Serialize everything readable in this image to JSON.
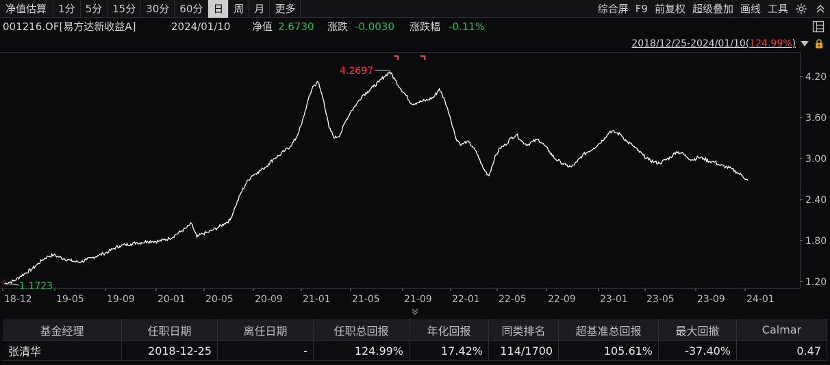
{
  "toolbar": {
    "left_items": [
      "净值估算",
      "1分",
      "5分",
      "15分",
      "30分",
      "60分",
      "日",
      "周",
      "月",
      "更多"
    ],
    "active_item": "日",
    "right_items": [
      "综合屏",
      "F9",
      "前复权",
      "超级叠加",
      "画线",
      "工具"
    ],
    "right_icons": [
      "gear-icon",
      "double-chevron-up-icon"
    ]
  },
  "info": {
    "fund": "001216.OF[易方达新收益A]",
    "date": "2024/01/10",
    "nav_label": "净值",
    "nav_value": "2.6730",
    "change_label": "涨跌",
    "change_value": "-0.0030",
    "pct_label": "涨跌幅",
    "pct_value": "-0.11%"
  },
  "range": {
    "text": "2018/12/25-2024/01/10(",
    "pct": "124.99%",
    "close": ")"
  },
  "chart_data": {
    "type": "line",
    "ylim": [
      1.1,
      4.5
    ],
    "y_ticks": [
      "4.20",
      "3.60",
      "3.00",
      "2.40",
      "1.80",
      "1.20"
    ],
    "x_ticks": [
      "18-12",
      "19-05",
      "19-09",
      "20-01",
      "20-05",
      "20-09",
      "21-01",
      "21-05",
      "21-09",
      "22-01",
      "22-05",
      "22-09",
      "23-01",
      "23-05",
      "23-09",
      "24-01"
    ],
    "max_label": "4.2697",
    "min_label": "1.1723",
    "series": [
      {
        "values": [
          [
            0,
            1.17
          ],
          [
            2,
            1.19
          ],
          [
            4,
            1.22
          ],
          [
            6,
            1.28
          ],
          [
            8,
            1.33
          ],
          [
            10,
            1.38
          ],
          [
            12,
            1.45
          ],
          [
            14,
            1.52
          ],
          [
            16,
            1.57
          ],
          [
            18,
            1.59
          ],
          [
            20,
            1.56
          ],
          [
            22,
            1.53
          ],
          [
            24,
            1.51
          ],
          [
            26,
            1.49
          ],
          [
            28,
            1.49
          ],
          [
            30,
            1.52
          ],
          [
            32,
            1.55
          ],
          [
            34,
            1.58
          ],
          [
            36,
            1.61
          ],
          [
            38,
            1.64
          ],
          [
            40,
            1.69
          ],
          [
            42,
            1.72
          ],
          [
            44,
            1.74
          ],
          [
            46,
            1.75
          ],
          [
            48,
            1.77
          ],
          [
            50,
            1.77
          ],
          [
            52,
            1.79
          ],
          [
            54,
            1.79
          ],
          [
            56,
            1.79
          ],
          [
            58,
            1.81
          ],
          [
            60,
            1.83
          ],
          [
            62,
            1.88
          ],
          [
            64,
            1.93
          ],
          [
            66,
            1.98
          ],
          [
            68,
            2.05
          ],
          [
            70,
            1.85
          ],
          [
            72,
            1.9
          ],
          [
            74,
            1.92
          ],
          [
            76,
            1.96
          ],
          [
            78,
            2.0
          ],
          [
            80,
            2.05
          ],
          [
            82,
            2.1
          ],
          [
            84,
            2.3
          ],
          [
            86,
            2.5
          ],
          [
            88,
            2.65
          ],
          [
            90,
            2.75
          ],
          [
            92,
            2.8
          ],
          [
            94,
            2.85
          ],
          [
            96,
            2.92
          ],
          [
            98,
            3.0
          ],
          [
            100,
            3.05
          ],
          [
            102,
            3.12
          ],
          [
            104,
            3.18
          ],
          [
            106,
            3.3
          ],
          [
            108,
            3.5
          ],
          [
            110,
            3.8
          ],
          [
            112,
            4.05
          ],
          [
            114,
            4.12
          ],
          [
            116,
            3.85
          ],
          [
            118,
            3.45
          ],
          [
            120,
            3.3
          ],
          [
            122,
            3.35
          ],
          [
            124,
            3.55
          ],
          [
            126,
            3.7
          ],
          [
            128,
            3.8
          ],
          [
            130,
            3.92
          ],
          [
            132,
            3.98
          ],
          [
            134,
            4.05
          ],
          [
            136,
            4.12
          ],
          [
            138,
            4.2
          ],
          [
            140,
            4.27
          ],
          [
            142,
            4.15
          ],
          [
            144,
            4.02
          ],
          [
            146,
            3.92
          ],
          [
            148,
            3.8
          ],
          [
            150,
            3.82
          ],
          [
            152,
            3.84
          ],
          [
            154,
            3.86
          ],
          [
            156,
            3.9
          ],
          [
            158,
            4.02
          ],
          [
            160,
            3.85
          ],
          [
            162,
            3.6
          ],
          [
            164,
            3.3
          ],
          [
            166,
            3.2
          ],
          [
            168,
            3.25
          ],
          [
            170,
            3.18
          ],
          [
            172,
            3.05
          ],
          [
            174,
            2.85
          ],
          [
            176,
            2.75
          ],
          [
            178,
            3.0
          ],
          [
            180,
            3.15
          ],
          [
            182,
            3.2
          ],
          [
            184,
            3.3
          ],
          [
            186,
            3.35
          ],
          [
            188,
            3.25
          ],
          [
            190,
            3.2
          ],
          [
            192,
            3.25
          ],
          [
            194,
            3.28
          ],
          [
            196,
            3.2
          ],
          [
            198,
            3.1
          ],
          [
            200,
            3.0
          ],
          [
            202,
            2.95
          ],
          [
            204,
            2.9
          ],
          [
            206,
            2.88
          ],
          [
            208,
            2.95
          ],
          [
            210,
            3.05
          ],
          [
            212,
            3.1
          ],
          [
            214,
            3.15
          ],
          [
            216,
            3.22
          ],
          [
            218,
            3.3
          ],
          [
            220,
            3.4
          ],
          [
            222,
            3.38
          ],
          [
            224,
            3.35
          ],
          [
            226,
            3.25
          ],
          [
            228,
            3.2
          ],
          [
            230,
            3.12
          ],
          [
            232,
            3.05
          ],
          [
            234,
            2.98
          ],
          [
            236,
            2.95
          ],
          [
            238,
            2.93
          ],
          [
            240,
            2.98
          ],
          [
            242,
            3.02
          ],
          [
            244,
            3.1
          ],
          [
            246,
            3.08
          ],
          [
            248,
            3.02
          ],
          [
            250,
            2.98
          ],
          [
            252,
            3.02
          ],
          [
            254,
            3.0
          ],
          [
            256,
            2.96
          ],
          [
            258,
            2.95
          ],
          [
            260,
            2.9
          ],
          [
            262,
            2.88
          ],
          [
            264,
            2.85
          ],
          [
            266,
            2.8
          ],
          [
            268,
            2.75
          ],
          [
            270,
            2.68
          ]
        ]
      }
    ]
  },
  "table": {
    "headers": [
      "基金经理",
      "任职日期",
      "离任日期",
      "任职总回报",
      "年化回报",
      "同类排名",
      "超基准总回报",
      "最大回撤",
      "Calmar"
    ],
    "rows": [
      [
        "张清华",
        "2018-12-25",
        "-",
        "124.99%",
        "17.42%",
        "114/1700",
        "105.61%",
        "-37.40%",
        "0.47"
      ]
    ]
  },
  "colors": {
    "background": "#0b0b0d",
    "up_red": "#ff3b3b",
    "down_green": "#1fbf4f",
    "line": "#ffffff"
  }
}
